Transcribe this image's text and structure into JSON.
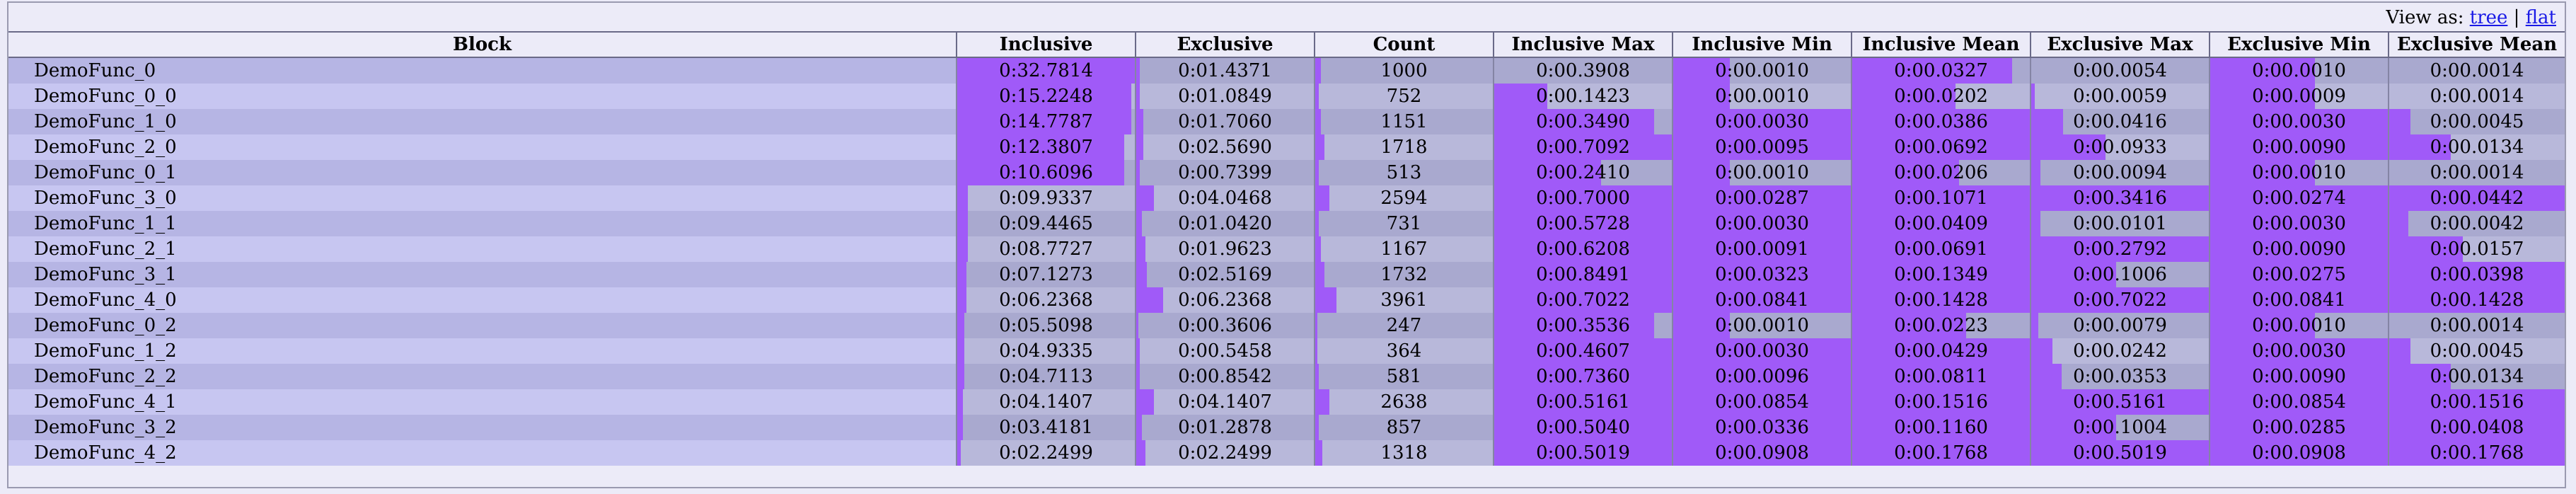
{
  "view_as": {
    "label": "View as:",
    "tree": "tree",
    "separator": "|",
    "flat": "flat"
  },
  "colors": {
    "bar": "#a05af8",
    "row_odd": "#b6b5e4",
    "row_even": "#c7c6f1"
  },
  "columns": [
    "Block",
    "Inclusive",
    "Exclusive",
    "Count",
    "Inclusive Max",
    "Inclusive Min",
    "Inclusive Mean",
    "Exclusive Max",
    "Exclusive Min",
    "Exclusive Mean"
  ],
  "rows": [
    {
      "block": "DemoFunc_0",
      "cells": [
        "0:32.7814",
        "0:01.4371",
        "1000",
        "0:00.3908",
        "0:00.0010",
        "0:00.0327",
        "0:00.0054",
        "0:00.0010",
        "0:00.0014"
      ],
      "fills": [
        1.0,
        0.02,
        0.03,
        0.0,
        0.32,
        0.9,
        0.0,
        0.59,
        0.0
      ]
    },
    {
      "block": "DemoFunc_0_0",
      "cells": [
        "0:15.2248",
        "0:01.0849",
        "752",
        "0:00.1423",
        "0:00.0010",
        "0:00.0202",
        "0:00.0059",
        "0:00.0009",
        "0:00.0014"
      ],
      "fills": [
        0.98,
        0.02,
        0.02,
        0.3,
        0.32,
        0.58,
        0.02,
        0.59,
        0.0
      ]
    },
    {
      "block": "DemoFunc_1_0",
      "cells": [
        "0:14.7787",
        "0:01.7060",
        "1151",
        "0:00.3490",
        "0:00.0030",
        "0:00.0386",
        "0:00.0416",
        "0:00.0030",
        "0:00.0045"
      ],
      "fills": [
        0.98,
        0.04,
        0.03,
        0.9,
        1.0,
        1.0,
        0.18,
        1.0,
        0.12
      ]
    },
    {
      "block": "DemoFunc_2_0",
      "cells": [
        "0:12.3807",
        "0:02.5690",
        "1718",
        "0:00.7092",
        "0:00.0095",
        "0:00.0692",
        "0:00.0933",
        "0:00.0090",
        "0:00.0134"
      ],
      "fills": [
        0.94,
        0.04,
        0.05,
        1.0,
        1.0,
        1.0,
        0.42,
        1.0,
        0.35
      ]
    },
    {
      "block": "DemoFunc_0_1",
      "cells": [
        "0:10.6096",
        "0:00.7399",
        "513",
        "0:00.2410",
        "0:00.0010",
        "0:00.0206",
        "0:00.0094",
        "0:00.0010",
        "0:00.0014"
      ],
      "fills": [
        0.94,
        0.02,
        0.02,
        0.6,
        0.32,
        0.6,
        0.05,
        0.59,
        0.0
      ]
    },
    {
      "block": "DemoFunc_3_0",
      "cells": [
        "0:09.9337",
        "0:04.0468",
        "2594",
        "0:00.7000",
        "0:00.0287",
        "0:00.1071",
        "0:00.3416",
        "0:00.0274",
        "0:00.0442"
      ],
      "fills": [
        0.06,
        0.1,
        0.08,
        1.0,
        1.0,
        1.0,
        1.0,
        1.0,
        1.0
      ]
    },
    {
      "block": "DemoFunc_1_1",
      "cells": [
        "0:09.4465",
        "0:01.0420",
        "731",
        "0:00.5728",
        "0:00.0030",
        "0:00.0409",
        "0:00.0101",
        "0:00.0030",
        "0:00.0042"
      ],
      "fills": [
        0.06,
        0.03,
        0.02,
        1.0,
        1.0,
        1.0,
        0.05,
        1.0,
        0.11
      ]
    },
    {
      "block": "DemoFunc_2_1",
      "cells": [
        "0:08.7727",
        "0:01.9623",
        "1167",
        "0:00.6208",
        "0:00.0091",
        "0:00.0691",
        "0:00.2792",
        "0:00.0090",
        "0:00.0157"
      ],
      "fills": [
        0.06,
        0.05,
        0.03,
        1.0,
        1.0,
        1.0,
        1.0,
        1.0,
        0.42
      ]
    },
    {
      "block": "DemoFunc_3_1",
      "cells": [
        "0:07.1273",
        "0:02.5169",
        "1732",
        "0:00.8491",
        "0:00.0323",
        "0:00.1349",
        "0:00.1006",
        "0:00.0275",
        "0:00.0398"
      ],
      "fills": [
        0.05,
        0.06,
        0.05,
        1.0,
        1.0,
        1.0,
        0.48,
        1.0,
        1.0
      ]
    },
    {
      "block": "DemoFunc_4_0",
      "cells": [
        "0:06.2368",
        "0:06.2368",
        "3961",
        "0:00.7022",
        "0:00.0841",
        "0:00.1428",
        "0:00.7022",
        "0:00.0841",
        "0:00.1428"
      ],
      "fills": [
        0.05,
        0.15,
        0.12,
        1.0,
        1.0,
        1.0,
        1.0,
        1.0,
        1.0
      ]
    },
    {
      "block": "DemoFunc_0_2",
      "cells": [
        "0:05.5098",
        "0:00.3606",
        "247",
        "0:00.3536",
        "0:00.0010",
        "0:00.0223",
        "0:00.0079",
        "0:00.0010",
        "0:00.0014"
      ],
      "fills": [
        0.04,
        0.01,
        0.01,
        0.9,
        0.32,
        0.64,
        0.04,
        0.59,
        0.0
      ]
    },
    {
      "block": "DemoFunc_1_2",
      "cells": [
        "0:04.9335",
        "0:00.5458",
        "364",
        "0:00.4607",
        "0:00.0030",
        "0:00.0429",
        "0:00.0242",
        "0:00.0030",
        "0:00.0045"
      ],
      "fills": [
        0.04,
        0.02,
        0.01,
        1.0,
        1.0,
        1.0,
        0.12,
        1.0,
        0.12
      ]
    },
    {
      "block": "DemoFunc_2_2",
      "cells": [
        "0:04.7113",
        "0:00.8542",
        "581",
        "0:00.7360",
        "0:00.0096",
        "0:00.0811",
        "0:00.0353",
        "0:00.0090",
        "0:00.0134"
      ],
      "fills": [
        0.04,
        0.02,
        0.02,
        1.0,
        1.0,
        1.0,
        0.17,
        1.0,
        0.35
      ]
    },
    {
      "block": "DemoFunc_4_1",
      "cells": [
        "0:04.1407",
        "0:04.1407",
        "2638",
        "0:00.5161",
        "0:00.0854",
        "0:00.1516",
        "0:00.5161",
        "0:00.0854",
        "0:00.1516"
      ],
      "fills": [
        0.03,
        0.1,
        0.08,
        1.0,
        1.0,
        1.0,
        1.0,
        1.0,
        1.0
      ]
    },
    {
      "block": "DemoFunc_3_2",
      "cells": [
        "0:03.4181",
        "0:01.2878",
        "857",
        "0:00.5040",
        "0:00.0336",
        "0:00.1160",
        "0:00.1004",
        "0:00.0285",
        "0:00.0408"
      ],
      "fills": [
        0.03,
        0.03,
        0.02,
        1.0,
        1.0,
        1.0,
        0.48,
        1.0,
        1.0
      ]
    },
    {
      "block": "DemoFunc_4_2",
      "cells": [
        "0:02.2499",
        "0:02.2499",
        "1318",
        "0:00.5019",
        "0:00.0908",
        "0:00.1768",
        "0:00.5019",
        "0:00.0908",
        "0:00.1768"
      ],
      "fills": [
        0.02,
        0.05,
        0.04,
        1.0,
        1.0,
        1.0,
        1.0,
        1.0,
        1.0
      ]
    }
  ]
}
